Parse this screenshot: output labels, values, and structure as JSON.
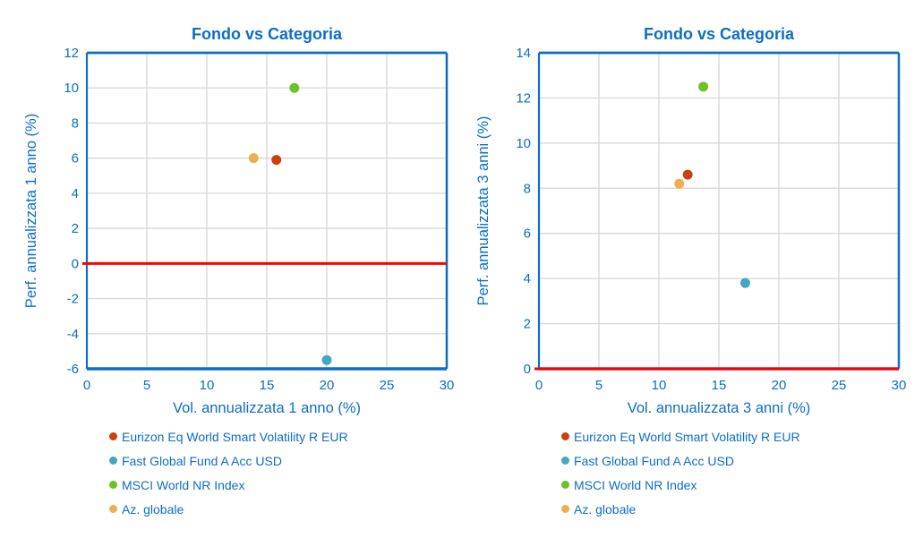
{
  "theme": {
    "axis_color": "#0c6ec6",
    "text_color": "#0c6ec6",
    "grid_color": "#d9d9d9",
    "zero_line_color": "#ff0000",
    "background": "#ffffff"
  },
  "chart_data": [
    {
      "type": "scatter",
      "title": "Fondo vs Categoria",
      "xlabel": "Vol. annualizzata 1 anno (%)",
      "ylabel": "Perf. annualizzata 1 anno (%)",
      "xlim": [
        0,
        30
      ],
      "xtick_step": 5,
      "xticks": [
        0,
        5,
        10,
        15,
        20,
        25,
        30
      ],
      "ylim": [
        -6,
        12
      ],
      "ytick_step": 2,
      "yticks": [
        -6,
        -4,
        -2,
        0,
        2,
        4,
        6,
        8,
        10,
        12
      ],
      "grid": true,
      "zero_line_y": 0,
      "legend_position": "bottom-left",
      "series": [
        {
          "name": "Eurizon Eq World Smart Volatility R EUR",
          "color": "#c8410f",
          "points": [
            [
              15.8,
              5.9
            ]
          ]
        },
        {
          "name": "Fast Global Fund A Acc USD",
          "color": "#44a8bd",
          "points": [
            [
              20.0,
              -5.5
            ]
          ]
        },
        {
          "name": "MSCI World NR Index",
          "color": "#6cc228",
          "points": [
            [
              17.3,
              10.0
            ]
          ]
        },
        {
          "name": "Az. globale",
          "color": "#edae4e",
          "points": [
            [
              13.9,
              6.0
            ]
          ]
        }
      ]
    },
    {
      "type": "scatter",
      "title": "Fondo vs Categoria",
      "xlabel": "Vol. annualizzata 3 anni (%)",
      "ylabel": "Perf. annualizzata 3 anni (%)",
      "xlim": [
        0,
        30
      ],
      "xtick_step": 5,
      "xticks": [
        0,
        5,
        10,
        15,
        20,
        25,
        30
      ],
      "ylim": [
        0,
        14
      ],
      "ytick_step": 2,
      "yticks": [
        0,
        2,
        4,
        6,
        8,
        10,
        12,
        14
      ],
      "grid": true,
      "zero_line_y": 0,
      "legend_position": "bottom-left",
      "series": [
        {
          "name": "Eurizon Eq World Smart Volatility R EUR",
          "color": "#c8410f",
          "points": [
            [
              12.4,
              8.6
            ]
          ]
        },
        {
          "name": "Fast Global Fund A Acc USD",
          "color": "#44a8bd",
          "points": [
            [
              17.2,
              3.8
            ]
          ]
        },
        {
          "name": "MSCI World NR Index",
          "color": "#6cc228",
          "points": [
            [
              13.7,
              12.5
            ]
          ]
        },
        {
          "name": "Az. globale",
          "color": "#edae4e",
          "points": [
            [
              11.7,
              8.2
            ]
          ]
        }
      ]
    }
  ]
}
